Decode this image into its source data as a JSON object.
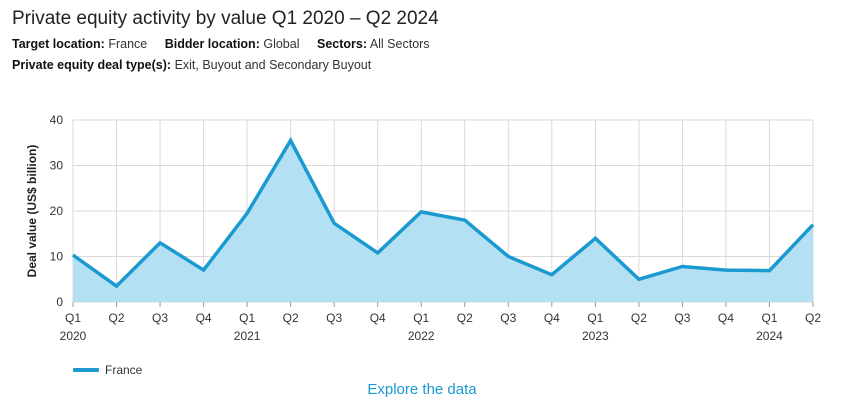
{
  "header": {
    "title": "Private equity activity by value Q1 2020 – Q2 2024",
    "target_label": "Target location:",
    "target_value": "France",
    "bidder_label": "Bidder location:",
    "bidder_value": "Global",
    "sectors_label": "Sectors:",
    "sectors_value": "All Sectors",
    "deal_type_label": "Private equity deal type(s):",
    "deal_type_value": "Exit, Buyout and Secondary Buyout"
  },
  "legend": {
    "label": "France"
  },
  "explore_link": "Explore the data",
  "chart_data": {
    "type": "area",
    "ylabel": "Deal value (US$ billion)",
    "ylim": [
      0,
      40
    ],
    "yticks": [
      0,
      10,
      20,
      30,
      40
    ],
    "grid": true,
    "legend_position": "bottom-left",
    "line_color": "#1a9ad0",
    "fill_color": "#b3e0f2",
    "categories": [
      "Q1",
      "Q2",
      "Q3",
      "Q4",
      "Q1",
      "Q2",
      "Q3",
      "Q4",
      "Q1",
      "Q2",
      "Q3",
      "Q4",
      "Q1",
      "Q2",
      "Q3",
      "Q4",
      "Q1",
      "Q2"
    ],
    "years": [
      "2020",
      "",
      "",
      "",
      "2021",
      "",
      "",
      "",
      "2022",
      "",
      "",
      "",
      "2023",
      "",
      "",
      "",
      "2024",
      ""
    ],
    "series": [
      {
        "name": "France",
        "values": [
          10.3,
          3.5,
          13.0,
          7.0,
          19.5,
          35.5,
          17.3,
          10.8,
          19.8,
          18.0,
          10.0,
          6.0,
          14.0,
          5.0,
          7.8,
          7.0,
          6.9,
          17.0
        ]
      }
    ]
  }
}
